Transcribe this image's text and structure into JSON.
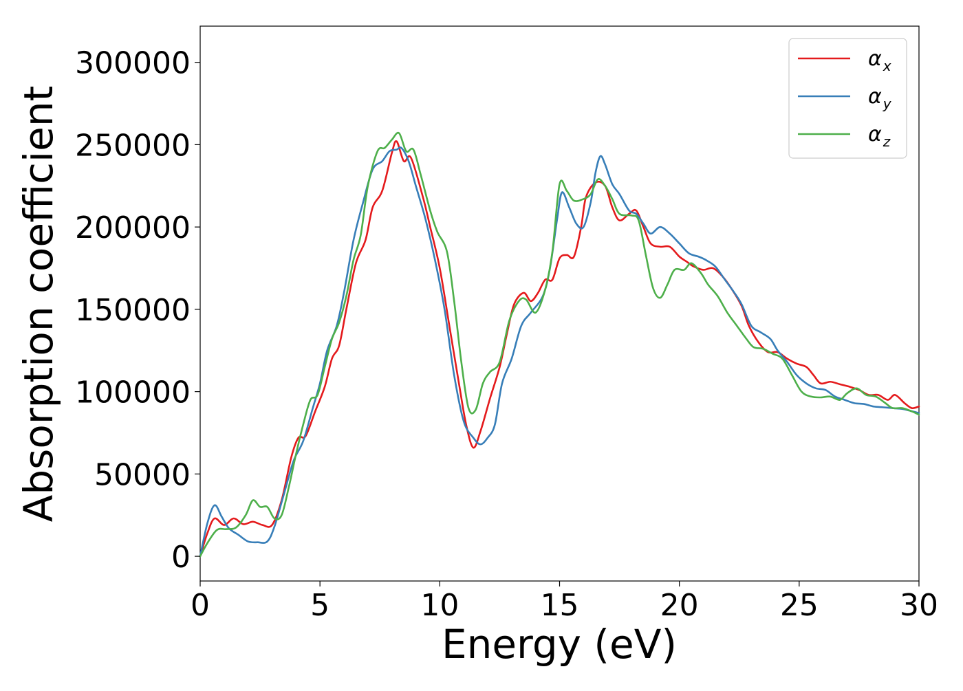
{
  "chart_data": {
    "type": "line",
    "title": "",
    "xlabel": "Energy (eV)",
    "ylabel": "Absorption coefficient",
    "xlim": [
      0,
      30
    ],
    "ylim": [
      -15000,
      322000
    ],
    "x_ticks": [
      0,
      5,
      10,
      15,
      20,
      25,
      30
    ],
    "y_ticks": [
      0,
      50000,
      100000,
      150000,
      200000,
      250000,
      300000
    ],
    "grid": false,
    "legend_position": "top-right",
    "series": [
      {
        "name": "α_x",
        "label_base": "α",
        "label_sub": "x",
        "color": "#e41a1c",
        "points": [
          [
            0,
            0
          ],
          [
            0.3,
            14000
          ],
          [
            0.6,
            23000
          ],
          [
            1.0,
            19000
          ],
          [
            1.4,
            23000
          ],
          [
            1.8,
            19500
          ],
          [
            2.2,
            21000
          ],
          [
            2.6,
            19000
          ],
          [
            3.0,
            19000
          ],
          [
            3.4,
            34000
          ],
          [
            3.8,
            60000
          ],
          [
            4.1,
            72000
          ],
          [
            4.4,
            73000
          ],
          [
            4.8,
            88000
          ],
          [
            5.2,
            103000
          ],
          [
            5.5,
            120000
          ],
          [
            5.8,
            128000
          ],
          [
            6.1,
            150000
          ],
          [
            6.5,
            178000
          ],
          [
            6.9,
            192000
          ],
          [
            7.2,
            212000
          ],
          [
            7.6,
            222000
          ],
          [
            8.0,
            245000
          ],
          [
            8.2,
            252000
          ],
          [
            8.5,
            240000
          ],
          [
            8.8,
            242000
          ],
          [
            9.3,
            218000
          ],
          [
            9.6,
            200000
          ],
          [
            10.0,
            175000
          ],
          [
            10.4,
            140000
          ],
          [
            10.8,
            105000
          ],
          [
            11.1,
            80000
          ],
          [
            11.4,
            66000
          ],
          [
            11.7,
            76000
          ],
          [
            12.1,
            96000
          ],
          [
            12.5,
            115000
          ],
          [
            12.8,
            135000
          ],
          [
            13.1,
            153000
          ],
          [
            13.5,
            160000
          ],
          [
            13.8,
            155000
          ],
          [
            14.1,
            160000
          ],
          [
            14.4,
            168000
          ],
          [
            14.7,
            168000
          ],
          [
            15.0,
            181000
          ],
          [
            15.3,
            183000
          ],
          [
            15.6,
            182000
          ],
          [
            15.9,
            200000
          ],
          [
            16.1,
            218000
          ],
          [
            16.5,
            227000
          ],
          [
            16.9,
            225000
          ],
          [
            17.2,
            212000
          ],
          [
            17.5,
            204000
          ],
          [
            17.9,
            208000
          ],
          [
            18.2,
            210000
          ],
          [
            18.5,
            200000
          ],
          [
            18.8,
            190000
          ],
          [
            19.2,
            188000
          ],
          [
            19.6,
            188000
          ],
          [
            20.0,
            182000
          ],
          [
            20.3,
            179000
          ],
          [
            20.6,
            176000
          ],
          [
            21.0,
            174000
          ],
          [
            21.4,
            175000
          ],
          [
            21.8,
            170000
          ],
          [
            22.2,
            162000
          ],
          [
            22.6,
            152000
          ],
          [
            22.9,
            140000
          ],
          [
            23.3,
            130000
          ],
          [
            23.7,
            124000
          ],
          [
            24.1,
            124000
          ],
          [
            24.5,
            120000
          ],
          [
            24.9,
            117000
          ],
          [
            25.3,
            115000
          ],
          [
            25.6,
            110000
          ],
          [
            25.9,
            105000
          ],
          [
            26.3,
            106000
          ],
          [
            26.7,
            104500
          ],
          [
            27.1,
            103000
          ],
          [
            27.5,
            101000
          ],
          [
            27.9,
            98000
          ],
          [
            28.3,
            98000
          ],
          [
            28.7,
            95000
          ],
          [
            29.0,
            98000
          ],
          [
            29.4,
            93000
          ],
          [
            29.7,
            90000
          ],
          [
            30.0,
            91000
          ]
        ]
      },
      {
        "name": "α_y",
        "label_base": "α",
        "label_sub": "y",
        "color": "#377eb8",
        "points": [
          [
            0,
            0
          ],
          [
            0.3,
            20000
          ],
          [
            0.6,
            31000
          ],
          [
            0.9,
            24000
          ],
          [
            1.2,
            17000
          ],
          [
            1.6,
            13000
          ],
          [
            2.0,
            9000
          ],
          [
            2.4,
            8500
          ],
          [
            2.8,
            9000
          ],
          [
            3.1,
            18000
          ],
          [
            3.5,
            38000
          ],
          [
            3.9,
            58000
          ],
          [
            4.3,
            70000
          ],
          [
            4.7,
            90000
          ],
          [
            5.0,
            105000
          ],
          [
            5.3,
            125000
          ],
          [
            5.7,
            140000
          ],
          [
            6.0,
            160000
          ],
          [
            6.4,
            192000
          ],
          [
            6.8,
            215000
          ],
          [
            7.2,
            235000
          ],
          [
            7.6,
            240000
          ],
          [
            7.9,
            246000
          ],
          [
            8.2,
            247000
          ],
          [
            8.4,
            248000
          ],
          [
            8.7,
            240000
          ],
          [
            9.0,
            225000
          ],
          [
            9.4,
            205000
          ],
          [
            9.8,
            180000
          ],
          [
            10.2,
            150000
          ],
          [
            10.6,
            110000
          ],
          [
            11.0,
            82000
          ],
          [
            11.4,
            72000
          ],
          [
            11.7,
            68000
          ],
          [
            12.0,
            72000
          ],
          [
            12.3,
            80000
          ],
          [
            12.6,
            105000
          ],
          [
            13.0,
            120000
          ],
          [
            13.4,
            140000
          ],
          [
            13.8,
            148000
          ],
          [
            14.3,
            158000
          ],
          [
            14.6,
            175000
          ],
          [
            14.9,
            205000
          ],
          [
            15.1,
            221000
          ],
          [
            15.4,
            212000
          ],
          [
            15.7,
            202000
          ],
          [
            16.0,
            200000
          ],
          [
            16.3,
            215000
          ],
          [
            16.5,
            233000
          ],
          [
            16.7,
            243000
          ],
          [
            16.9,
            238000
          ],
          [
            17.2,
            226000
          ],
          [
            17.5,
            220000
          ],
          [
            17.9,
            210000
          ],
          [
            18.2,
            208000
          ],
          [
            18.5,
            202000
          ],
          [
            18.8,
            196000
          ],
          [
            19.2,
            200000
          ],
          [
            19.6,
            196000
          ],
          [
            20.0,
            190000
          ],
          [
            20.4,
            184000
          ],
          [
            20.8,
            182000
          ],
          [
            21.1,
            180000
          ],
          [
            21.5,
            176000
          ],
          [
            21.9,
            168000
          ],
          [
            22.3,
            160000
          ],
          [
            22.6,
            153000
          ],
          [
            23.0,
            140000
          ],
          [
            23.4,
            136000
          ],
          [
            23.8,
            132000
          ],
          [
            24.1,
            125000
          ],
          [
            24.5,
            118000
          ],
          [
            24.9,
            110000
          ],
          [
            25.3,
            105000
          ],
          [
            25.7,
            102000
          ],
          [
            26.1,
            101000
          ],
          [
            26.5,
            97000
          ],
          [
            26.9,
            95000
          ],
          [
            27.3,
            93000
          ],
          [
            27.7,
            92500
          ],
          [
            28.1,
            91000
          ],
          [
            28.5,
            90500
          ],
          [
            28.9,
            90000
          ],
          [
            29.3,
            89500
          ],
          [
            29.6,
            88500
          ],
          [
            30.0,
            87000
          ]
        ]
      },
      {
        "name": "α_z",
        "label_base": "α",
        "label_sub": "z",
        "color": "#4daf4a",
        "points": [
          [
            0,
            0
          ],
          [
            0.3,
            8000
          ],
          [
            0.7,
            16000
          ],
          [
            1.1,
            16500
          ],
          [
            1.5,
            17500
          ],
          [
            1.9,
            25000
          ],
          [
            2.2,
            34000
          ],
          [
            2.5,
            30000
          ],
          [
            2.8,
            30000
          ],
          [
            3.1,
            23000
          ],
          [
            3.4,
            25000
          ],
          [
            3.7,
            42000
          ],
          [
            4.0,
            62000
          ],
          [
            4.3,
            80000
          ],
          [
            4.6,
            95000
          ],
          [
            4.9,
            98000
          ],
          [
            5.2,
            115000
          ],
          [
            5.5,
            132000
          ],
          [
            5.8,
            142000
          ],
          [
            6.1,
            158000
          ],
          [
            6.4,
            180000
          ],
          [
            6.7,
            195000
          ],
          [
            7.0,
            225000
          ],
          [
            7.4,
            246000
          ],
          [
            7.7,
            248000
          ],
          [
            8.0,
            253000
          ],
          [
            8.3,
            257000
          ],
          [
            8.6,
            246000
          ],
          [
            8.9,
            247000
          ],
          [
            9.2,
            232000
          ],
          [
            9.6,
            210000
          ],
          [
            9.9,
            197000
          ],
          [
            10.3,
            185000
          ],
          [
            10.6,
            155000
          ],
          [
            10.9,
            118000
          ],
          [
            11.2,
            90000
          ],
          [
            11.5,
            89000
          ],
          [
            11.8,
            105000
          ],
          [
            12.1,
            112000
          ],
          [
            12.5,
            118000
          ],
          [
            12.9,
            143000
          ],
          [
            13.3,
            155000
          ],
          [
            13.6,
            156000
          ],
          [
            14.0,
            148000
          ],
          [
            14.4,
            162000
          ],
          [
            14.7,
            185000
          ],
          [
            15.0,
            226000
          ],
          [
            15.3,
            222000
          ],
          [
            15.6,
            216000
          ],
          [
            16.0,
            217000
          ],
          [
            16.3,
            220000
          ],
          [
            16.6,
            229000
          ],
          [
            16.9,
            225000
          ],
          [
            17.2,
            217000
          ],
          [
            17.5,
            208000
          ],
          [
            18.0,
            207000
          ],
          [
            18.3,
            204000
          ],
          [
            18.6,
            183000
          ],
          [
            18.9,
            163000
          ],
          [
            19.2,
            157000
          ],
          [
            19.5,
            165000
          ],
          [
            19.8,
            174000
          ],
          [
            20.2,
            174000
          ],
          [
            20.5,
            178000
          ],
          [
            20.9,
            172000
          ],
          [
            21.2,
            165000
          ],
          [
            21.6,
            158000
          ],
          [
            22.0,
            148000
          ],
          [
            22.4,
            140000
          ],
          [
            22.8,
            132000
          ],
          [
            23.1,
            127000
          ],
          [
            23.5,
            126000
          ],
          [
            23.9,
            123000
          ],
          [
            24.3,
            120000
          ],
          [
            24.7,
            110000
          ],
          [
            25.1,
            100000
          ],
          [
            25.5,
            97000
          ],
          [
            25.9,
            96500
          ],
          [
            26.3,
            97000
          ],
          [
            26.7,
            95000
          ],
          [
            27.0,
            99000
          ],
          [
            27.4,
            102000
          ],
          [
            27.8,
            98000
          ],
          [
            28.2,
            97000
          ],
          [
            28.6,
            93000
          ],
          [
            28.9,
            90000
          ],
          [
            29.3,
            90000
          ],
          [
            29.7,
            88000
          ],
          [
            30.0,
            86000
          ]
        ]
      }
    ]
  }
}
